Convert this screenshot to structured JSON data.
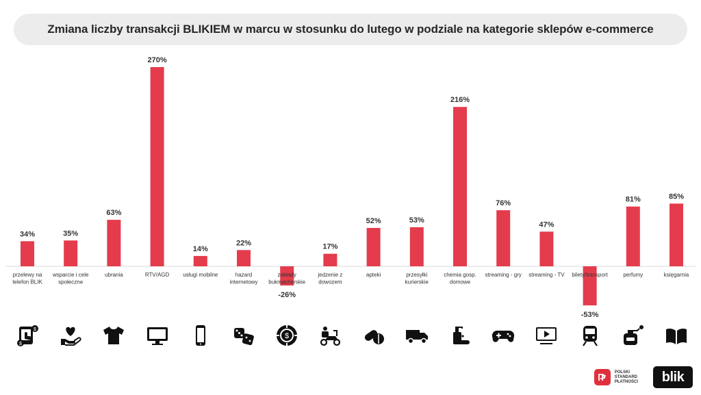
{
  "chart_data": {
    "type": "bar",
    "title": "Zmiana liczby transakcji BLIKIEM w marcu w stosunku do lutego w podziale na kategorie sklepów e-commerce",
    "xlabel": "",
    "ylabel": "",
    "ylim": [
      -60,
      280
    ],
    "grid": false,
    "legend": "none",
    "bar_color": "#e43c4c",
    "categories": [
      [
        "przelewy na",
        "telefon BLIK"
      ],
      [
        "wsparcie i cele",
        "społeczne"
      ],
      [
        "ubrania"
      ],
      [
        "RTV/AGD"
      ],
      [
        "usługi mobilne"
      ],
      [
        "hazard",
        "internetowy"
      ],
      [
        "zakłady",
        "bukmacherskie"
      ],
      [
        "jedzenie z",
        "dowozem"
      ],
      [
        "apteki"
      ],
      [
        "przesyłki",
        "kurierskie"
      ],
      [
        "chemia gosp.",
        "domowe"
      ],
      [
        "streaming - gry"
      ],
      [
        "streaming - TV"
      ],
      [
        "bilety/transport"
      ],
      [
        "perfumy"
      ],
      [
        "księgarnia"
      ]
    ],
    "values": [
      34,
      35,
      63,
      270,
      14,
      22,
      -26,
      17,
      52,
      53,
      216,
      76,
      47,
      -53,
      81,
      85
    ],
    "value_labels": [
      "34%",
      "35%",
      "63%",
      "270%",
      "14%",
      "22%",
      "-26%",
      "17%",
      "52%",
      "53%",
      "216%",
      "76%",
      "47%",
      "-53%",
      "81%",
      "85%"
    ]
  },
  "icons": [
    "phone-transfer-icon",
    "heart-hand-icon",
    "tshirt-icon",
    "monitor-icon",
    "smartphone-icon",
    "dice-icon",
    "casino-chip-icon",
    "delivery-scooter-icon",
    "pills-icon",
    "delivery-truck-icon",
    "soap-dispenser-icon",
    "gamepad-icon",
    "tv-play-icon",
    "train-icon",
    "perfume-bottle-icon",
    "open-book-icon"
  ],
  "logos": {
    "psp_lines": [
      "POLSKI",
      "STANDARD",
      "PŁATNOŚCI"
    ],
    "blik_text": "blik"
  }
}
